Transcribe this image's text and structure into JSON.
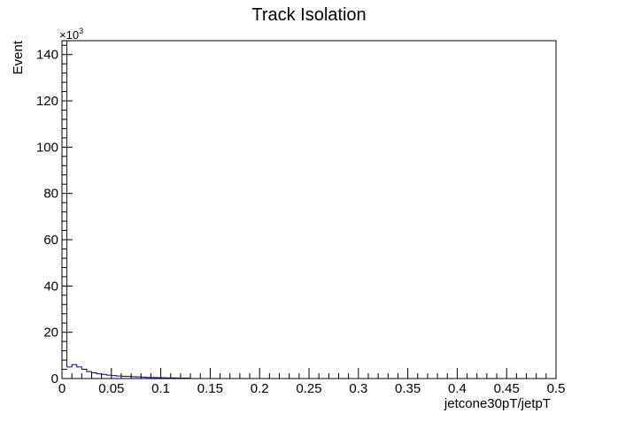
{
  "chart_data": {
    "type": "histogram",
    "title": "Track Isolation",
    "xlabel": "jetcone30pT/jetpT",
    "ylabel": "Event",
    "xlim": [
      0,
      0.5
    ],
    "ylim": [
      0,
      146
    ],
    "y_multiplier_base": "×10",
    "y_multiplier_exp": "3",
    "x_ticks": [
      "0",
      "0.05",
      "0.1",
      "0.15",
      "0.2",
      "0.25",
      "0.3",
      "0.35",
      "0.4",
      "0.45",
      "0.5"
    ],
    "y_ticks": [
      "0",
      "20",
      "40",
      "60",
      "80",
      "100",
      "120",
      "140"
    ],
    "grid": false,
    "legend": "none",
    "line_color": "#000099",
    "bins": [
      {
        "x0": 0.0,
        "x1": 0.005,
        "value": 146
      },
      {
        "x0": 0.005,
        "x1": 0.01,
        "value": 5.0
      },
      {
        "x0": 0.01,
        "x1": 0.015,
        "value": 6.0
      },
      {
        "x0": 0.015,
        "x1": 0.02,
        "value": 5.0
      },
      {
        "x0": 0.02,
        "x1": 0.025,
        "value": 4.0
      },
      {
        "x0": 0.025,
        "x1": 0.03,
        "value": 3.0
      },
      {
        "x0": 0.03,
        "x1": 0.035,
        "value": 2.5
      },
      {
        "x0": 0.035,
        "x1": 0.04,
        "value": 2.0
      },
      {
        "x0": 0.04,
        "x1": 0.045,
        "value": 1.8
      },
      {
        "x0": 0.045,
        "x1": 0.05,
        "value": 1.5
      },
      {
        "x0": 0.05,
        "x1": 0.055,
        "value": 1.3
      },
      {
        "x0": 0.055,
        "x1": 0.06,
        "value": 1.1
      },
      {
        "x0": 0.06,
        "x1": 0.065,
        "value": 1.0
      },
      {
        "x0": 0.065,
        "x1": 0.07,
        "value": 0.9
      },
      {
        "x0": 0.07,
        "x1": 0.075,
        "value": 0.8
      },
      {
        "x0": 0.075,
        "x1": 0.08,
        "value": 0.7
      },
      {
        "x0": 0.08,
        "x1": 0.085,
        "value": 0.6
      },
      {
        "x0": 0.085,
        "x1": 0.09,
        "value": 0.5
      },
      {
        "x0": 0.09,
        "x1": 0.095,
        "value": 0.45
      },
      {
        "x0": 0.095,
        "x1": 0.1,
        "value": 0.4
      },
      {
        "x0": 0.1,
        "x1": 0.105,
        "value": 0.35
      },
      {
        "x0": 0.105,
        "x1": 0.11,
        "value": 0.3
      },
      {
        "x0": 0.11,
        "x1": 0.115,
        "value": 0.3
      },
      {
        "x0": 0.115,
        "x1": 0.12,
        "value": 0.25
      },
      {
        "x0": 0.12,
        "x1": 0.125,
        "value": 0.2
      },
      {
        "x0": 0.125,
        "x1": 0.13,
        "value": 0.2
      },
      {
        "x0": 0.13,
        "x1": 0.135,
        "value": 0.0
      }
    ]
  }
}
